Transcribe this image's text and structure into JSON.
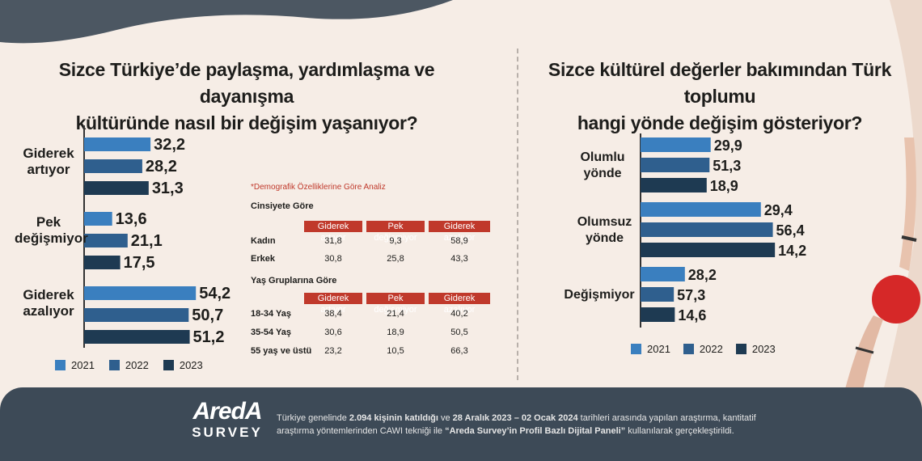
{
  "left_title_1": "Sizce Türkiye’de paylaşma, yardımlaşma ve dayanışma",
  "left_title_2": "kültüründe nasıl bir değişim yaşanıyor?",
  "right_title_1": "Sizce kültürel değerler bakımından Türk toplumu",
  "right_title_2": "hangi yönde değişim gösteriyor?",
  "colors": {
    "y2021": "#3a7fbf",
    "y2022": "#2f5f8e",
    "y2023": "#1e3a52",
    "table_head": "#c0392b",
    "footer_bg": "#3d4a57",
    "dark_shape": "#3d4a57"
  },
  "chart_data": [
    {
      "type": "bar",
      "orientation": "horizontal",
      "categories": [
        "Giderek artıyor",
        "Pek değişmiyor",
        "Giderek azalıyor"
      ],
      "category_lines": [
        [
          "Giderek",
          "artıyor"
        ],
        [
          "Pek",
          "değişmiyor"
        ],
        [
          "Giderek",
          "azalıyor"
        ]
      ],
      "series": [
        {
          "name": "2021",
          "values": [
            32.2,
            13.6,
            54.2
          ]
        },
        {
          "name": "2022",
          "values": [
            28.2,
            21.1,
            50.7
          ]
        },
        {
          "name": "2023",
          "values": [
            31.3,
            17.5,
            51.2
          ]
        }
      ],
      "value_labels": [
        [
          "32,2",
          "28,2",
          "31,3"
        ],
        [
          "13,6",
          "21,1",
          "17,5"
        ],
        [
          "54,2",
          "50,7",
          "51,2"
        ]
      ],
      "legend": "bottom"
    },
    {
      "type": "bar",
      "orientation": "horizontal",
      "categories": [
        "Olumlu yönde",
        "Olumsuz yönde",
        "Değişmiyor"
      ],
      "category_lines": [
        [
          "Olumlu",
          "yönde"
        ],
        [
          "Olumsuz",
          "yönde"
        ],
        [
          "Değişmiyor"
        ]
      ],
      "series": [
        {
          "name": "2021",
          "values": [
            29.9,
            51.3,
            18.9
          ]
        },
        {
          "name": "2022",
          "values": [
            29.4,
            56.4,
            14.2
          ]
        },
        {
          "name": "2023",
          "values": [
            28.2,
            57.3,
            14.6
          ]
        }
      ],
      "value_labels": [
        [
          "29,9",
          "51,3",
          "18,9"
        ],
        [
          "29,4",
          "56,4",
          "14,2"
        ],
        [
          "28,2",
          "57,3",
          "14,6"
        ]
      ],
      "legend": "bottom"
    }
  ],
  "legend_years": [
    "2021",
    "2022",
    "2023"
  ],
  "demographic": {
    "note": "*Demografik Özelliklerine Göre Analiz",
    "gender_title": "Cinsiyete Göre",
    "age_title": "Yaş Gruplarına Göre",
    "columns": [
      "Giderek artıyor",
      "Pek değişmiyor",
      "Giderek azalıyor"
    ],
    "gender_rows": [
      {
        "label": "Kadın",
        "values": [
          "31,8",
          "9,3",
          "58,9"
        ]
      },
      {
        "label": "Erkek",
        "values": [
          "30,8",
          "25,8",
          "43,3"
        ]
      }
    ],
    "age_rows": [
      {
        "label": "18-34 Yaş",
        "values": [
          "38,4",
          "21,4",
          "40,2"
        ]
      },
      {
        "label": "35-54 Yaş",
        "values": [
          "30,6",
          "18,9",
          "50,5"
        ]
      },
      {
        "label": "55 yaş ve üstü",
        "values": [
          "23,2",
          "10,5",
          "66,3"
        ]
      }
    ]
  },
  "footer": {
    "logo_top": "AredA",
    "logo_bottom": "SURVEY",
    "text_line1_a": "Türkiye genelinde ",
    "text_line1_b": "2.094 kişinin katıldığı",
    "text_line1_c": " ve ",
    "text_line1_d": "28 Aralık 2023 – 02 Ocak 2024",
    "text_line1_e": " tarihleri arasında yapılan araştırma, kantitatif",
    "text_line2_a": "araştırma yöntemlerinden CAWI tekniği ile ",
    "text_line2_b": "“Areda Survey’in Profil Bazlı Dijital Paneli”",
    "text_line2_c": " kullanılarak gerçekleştirildi."
  }
}
